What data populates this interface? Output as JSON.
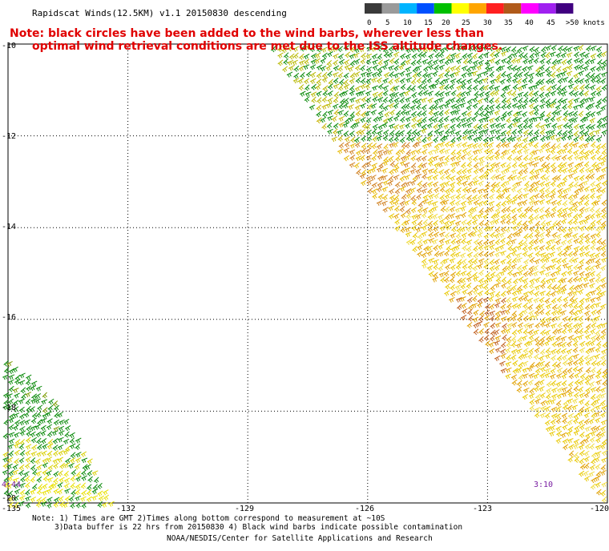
{
  "header": {
    "title": "Rapidscat Winds(12.5KM) v1.1 20150830 descending",
    "note_line1": "Note: black circles have been added to the wind barbs, wherever less than",
    "note_line2": "optimal wind retrieval conditions are met due to the ISS altitude changes."
  },
  "legend": {
    "labels": [
      "0",
      "5",
      "10",
      "15",
      "20",
      "25",
      "30",
      "35",
      "40",
      "45",
      ">50 knots"
    ],
    "colors": [
      "#3a3a3a",
      "#9a9a9a",
      "#00b4ff",
      "#0050ff",
      "#00c000",
      "#ffff00",
      "#ffa500",
      "#ff2020",
      "#b05a1a",
      "#ff00ff",
      "#a020f0",
      "#400080"
    ]
  },
  "axes": {
    "lat_labels": [
      "-10",
      "-12",
      "-14",
      "-16",
      "-18",
      "-20"
    ],
    "lon_labels": [
      "-135",
      "-132",
      "-129",
      "-126",
      "-123",
      "-120"
    ]
  },
  "map_labels": {
    "time_left": "4:44",
    "time_right": "3:10"
  },
  "footer": {
    "line1": "Note: 1) Times are GMT 2)Times along bottom correspond to measurement at ~10S",
    "line2": "3)Data buffer is 22 hrs from 20150830 4) Black wind barbs indicate possible contamination",
    "line3": "NOAA/NESDIS/Center for Satellite Applications and Research"
  },
  "swaths": {
    "east": {
      "polygon_lonlat": [
        [
          -128.4,
          -10.0
        ],
        [
          -120.0,
          -10.0
        ],
        [
          -120.0,
          -20.0
        ],
        [
          -126.3,
          -12.7
        ],
        [
          -128.4,
          -10.0
        ]
      ]
    },
    "west": {
      "polygon_lonlat": [
        [
          -135.0,
          -16.7
        ],
        [
          -133.5,
          -18.0
        ],
        [
          -132.3,
          -20.0
        ],
        [
          -135.0,
          -20.0
        ]
      ]
    }
  }
}
